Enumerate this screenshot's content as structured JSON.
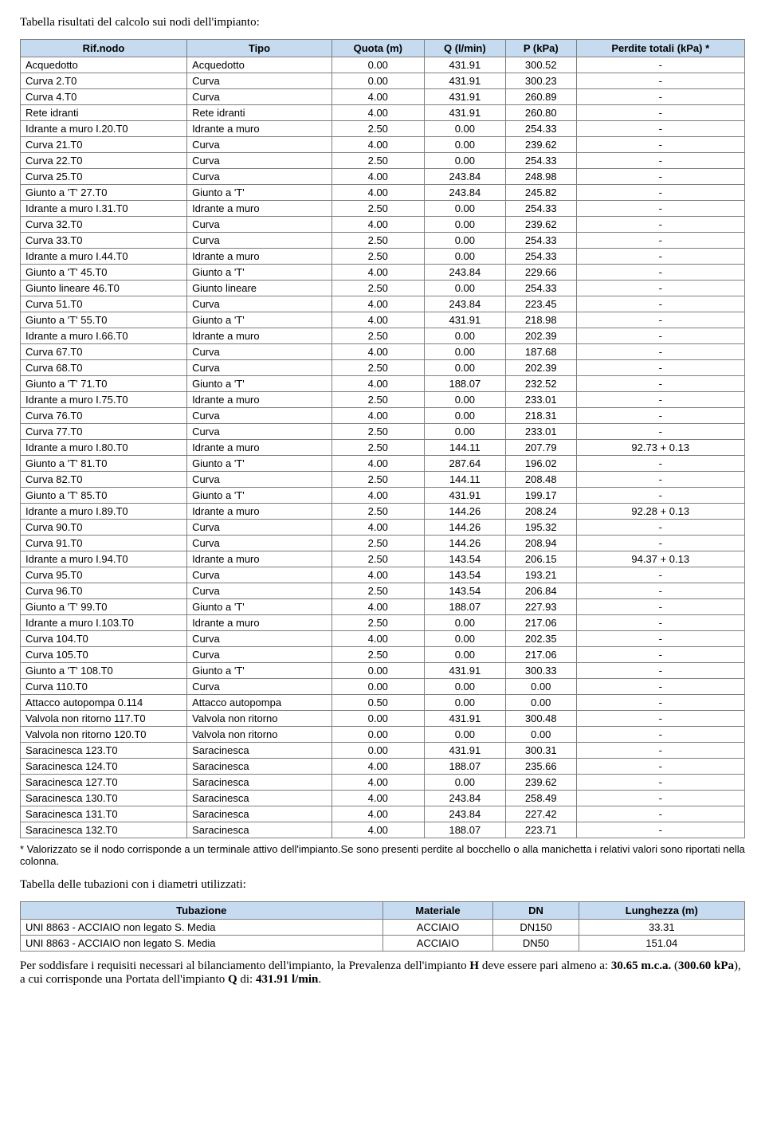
{
  "title1": "Tabella risultati del calcolo sui nodi dell'impianto:",
  "table1": {
    "headers": [
      "Rif.nodo",
      "Tipo",
      "Quota (m)",
      "Q (l/min)",
      "P (kPa)",
      "Perdite totali (kPa) *"
    ],
    "rows": [
      [
        "Acquedotto",
        "Acquedotto",
        "0.00",
        "431.91",
        "300.52",
        "-"
      ],
      [
        "Curva 2.T0",
        "Curva",
        "0.00",
        "431.91",
        "300.23",
        "-"
      ],
      [
        "Curva 4.T0",
        "Curva",
        "4.00",
        "431.91",
        "260.89",
        "-"
      ],
      [
        "Rete idranti",
        "Rete idranti",
        "4.00",
        "431.91",
        "260.80",
        "-"
      ],
      [
        "Idrante a muro I.20.T0",
        "Idrante a muro",
        "2.50",
        "0.00",
        "254.33",
        "-"
      ],
      [
        "Curva 21.T0",
        "Curva",
        "4.00",
        "0.00",
        "239.62",
        "-"
      ],
      [
        "Curva 22.T0",
        "Curva",
        "2.50",
        "0.00",
        "254.33",
        "-"
      ],
      [
        "Curva 25.T0",
        "Curva",
        "4.00",
        "243.84",
        "248.98",
        "-"
      ],
      [
        "Giunto a 'T' 27.T0",
        "Giunto a 'T'",
        "4.00",
        "243.84",
        "245.82",
        "-"
      ],
      [
        "Idrante a muro I.31.T0",
        "Idrante a muro",
        "2.50",
        "0.00",
        "254.33",
        "-"
      ],
      [
        "Curva 32.T0",
        "Curva",
        "4.00",
        "0.00",
        "239.62",
        "-"
      ],
      [
        "Curva 33.T0",
        "Curva",
        "2.50",
        "0.00",
        "254.33",
        "-"
      ],
      [
        "Idrante a muro I.44.T0",
        "Idrante a muro",
        "2.50",
        "0.00",
        "254.33",
        "-"
      ],
      [
        "Giunto a 'T' 45.T0",
        "Giunto a 'T'",
        "4.00",
        "243.84",
        "229.66",
        "-"
      ],
      [
        "Giunto lineare 46.T0",
        "Giunto lineare",
        "2.50",
        "0.00",
        "254.33",
        "-"
      ],
      [
        "Curva 51.T0",
        "Curva",
        "4.00",
        "243.84",
        "223.45",
        "-"
      ],
      [
        "Giunto a 'T' 55.T0",
        "Giunto a 'T'",
        "4.00",
        "431.91",
        "218.98",
        "-"
      ],
      [
        "Idrante a muro I.66.T0",
        "Idrante a muro",
        "2.50",
        "0.00",
        "202.39",
        "-"
      ],
      [
        "Curva 67.T0",
        "Curva",
        "4.00",
        "0.00",
        "187.68",
        "-"
      ],
      [
        "Curva 68.T0",
        "Curva",
        "2.50",
        "0.00",
        "202.39",
        "-"
      ],
      [
        "Giunto a 'T' 71.T0",
        "Giunto a 'T'",
        "4.00",
        "188.07",
        "232.52",
        "-"
      ],
      [
        "Idrante a muro I.75.T0",
        "Idrante a muro",
        "2.50",
        "0.00",
        "233.01",
        "-"
      ],
      [
        "Curva 76.T0",
        "Curva",
        "4.00",
        "0.00",
        "218.31",
        "-"
      ],
      [
        "Curva 77.T0",
        "Curva",
        "2.50",
        "0.00",
        "233.01",
        "-"
      ],
      [
        "Idrante a muro I.80.T0",
        "Idrante a muro",
        "2.50",
        "144.11",
        "207.79",
        "92.73 + 0.13"
      ],
      [
        "Giunto a 'T' 81.T0",
        "Giunto a 'T'",
        "4.00",
        "287.64",
        "196.02",
        "-"
      ],
      [
        "Curva 82.T0",
        "Curva",
        "2.50",
        "144.11",
        "208.48",
        "-"
      ],
      [
        "Giunto a 'T' 85.T0",
        "Giunto a 'T'",
        "4.00",
        "431.91",
        "199.17",
        "-"
      ],
      [
        "Idrante a muro I.89.T0",
        "Idrante a muro",
        "2.50",
        "144.26",
        "208.24",
        "92.28 + 0.13"
      ],
      [
        "Curva 90.T0",
        "Curva",
        "4.00",
        "144.26",
        "195.32",
        "-"
      ],
      [
        "Curva 91.T0",
        "Curva",
        "2.50",
        "144.26",
        "208.94",
        "-"
      ],
      [
        "Idrante a muro I.94.T0",
        "Idrante a muro",
        "2.50",
        "143.54",
        "206.15",
        "94.37 + 0.13"
      ],
      [
        "Curva 95.T0",
        "Curva",
        "4.00",
        "143.54",
        "193.21",
        "-"
      ],
      [
        "Curva 96.T0",
        "Curva",
        "2.50",
        "143.54",
        "206.84",
        "-"
      ],
      [
        "Giunto a 'T' 99.T0",
        "Giunto a 'T'",
        "4.00",
        "188.07",
        "227.93",
        "-"
      ],
      [
        "Idrante a muro I.103.T0",
        "Idrante a muro",
        "2.50",
        "0.00",
        "217.06",
        "-"
      ],
      [
        "Curva 104.T0",
        "Curva",
        "4.00",
        "0.00",
        "202.35",
        "-"
      ],
      [
        "Curva 105.T0",
        "Curva",
        "2.50",
        "0.00",
        "217.06",
        "-"
      ],
      [
        "Giunto a 'T' 108.T0",
        "Giunto a 'T'",
        "0.00",
        "431.91",
        "300.33",
        "-"
      ],
      [
        "Curva 110.T0",
        "Curva",
        "0.00",
        "0.00",
        "0.00",
        "-"
      ],
      [
        "Attacco autopompa 0.114",
        "Attacco autopompa",
        "0.50",
        "0.00",
        "0.00",
        "-"
      ],
      [
        "Valvola non ritorno 117.T0",
        "Valvola non ritorno",
        "0.00",
        "431.91",
        "300.48",
        "-"
      ],
      [
        "Valvola non ritorno 120.T0",
        "Valvola non ritorno",
        "0.00",
        "0.00",
        "0.00",
        "-"
      ],
      [
        "Saracinesca 123.T0",
        "Saracinesca",
        "0.00",
        "431.91",
        "300.31",
        "-"
      ],
      [
        "Saracinesca 124.T0",
        "Saracinesca",
        "4.00",
        "188.07",
        "235.66",
        "-"
      ],
      [
        "Saracinesca 127.T0",
        "Saracinesca",
        "4.00",
        "0.00",
        "239.62",
        "-"
      ],
      [
        "Saracinesca 130.T0",
        "Saracinesca",
        "4.00",
        "243.84",
        "258.49",
        "-"
      ],
      [
        "Saracinesca 131.T0",
        "Saracinesca",
        "4.00",
        "243.84",
        "227.42",
        "-"
      ],
      [
        "Saracinesca 132.T0",
        "Saracinesca",
        "4.00",
        "188.07",
        "223.71",
        "-"
      ]
    ]
  },
  "footnote1": "* Valorizzato se il nodo corrisponde a un terminale attivo dell'impianto.Se sono presenti perdite al bocchello o alla manichetta i relativi valori sono riportati nella colonna.",
  "title2": "Tabella delle tubazioni con i diametri utilizzati:",
  "table2": {
    "headers": [
      "Tubazione",
      "Materiale",
      "DN",
      "Lunghezza (m)"
    ],
    "rows": [
      [
        "UNI 8863 - ACCIAIO non legato S. Media",
        "ACCIAIO",
        "DN150",
        "33.31"
      ],
      [
        "UNI 8863 - ACCIAIO non legato S. Media",
        "ACCIAIO",
        "DN50",
        "151.04"
      ]
    ]
  },
  "conclusion": {
    "pre": "Per soddisfare i requisiti necessari al bilanciamento dell'impianto, la Prevalenza dell'impianto ",
    "H": "H",
    "mid1": " deve essere pari almeno a: ",
    "v1": "30.65 m.c.a.",
    "mid2": " (",
    "v2": "300.60 kPa",
    "mid3": "), a cui corrisponde una Portata dell'impianto ",
    "Q": "Q",
    "mid4": " di: ",
    "v3": "431.91 l/min",
    "end": "."
  },
  "colors": {
    "header_bg": "#c6dbef",
    "border": "#7f7f7f"
  }
}
